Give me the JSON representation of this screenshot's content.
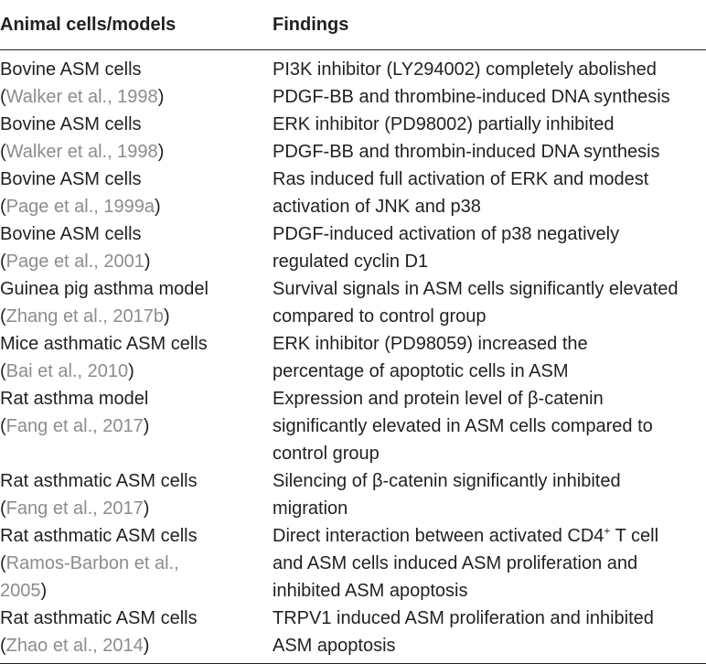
{
  "header": {
    "col1": "Animal cells/models",
    "col2": "Findings"
  },
  "rows": [
    {
      "model": "Bovine ASM cells",
      "cite": "Walker et al., 1998",
      "findings": [
        "PI3K inhibitor (LY294002) completely abolished",
        "PDGF-BB and thrombine-induced DNA synthesis"
      ]
    },
    {
      "model": "Bovine ASM cells",
      "cite": "Walker et al., 1998",
      "findings": [
        "ERK inhibitor (PD98002) partially inhibited",
        "PDGF-BB and thrombin-induced DNA synthesis"
      ]
    },
    {
      "model": "Bovine ASM cells",
      "cite": "Page et al., 1999a",
      "findings": [
        "Ras induced full activation of ERK and modest",
        "activation of JNK and p38"
      ]
    },
    {
      "model": "Bovine ASM cells",
      "cite": "Page et al., 2001",
      "findings": [
        "PDGF-induced activation of p38 negatively",
        "regulated cyclin D1"
      ]
    },
    {
      "model": "Guinea pig asthma model",
      "cite": "Zhang et al., 2017b",
      "findings": [
        "Survival signals in ASM cells significantly elevated",
        "compared to control group"
      ]
    },
    {
      "model": "Mice asthmatic ASM cells",
      "cite": "Bai et al., 2010",
      "findings": [
        "ERK inhibitor (PD98059) increased the",
        "percentage of apoptotic cells in ASM"
      ]
    },
    {
      "model": "Rat asthma model",
      "cite": "Fang et al., 2017",
      "findings": [
        "Expression and protein level of β-catenin",
        "significantly elevated in ASM cells compared to",
        "control group"
      ]
    },
    {
      "model": "Rat asthmatic ASM cells",
      "cite": "Fang et al., 2017",
      "findings": [
        "Silencing of β-catenin significantly inhibited",
        "migration"
      ]
    },
    {
      "model": "Rat asthmatic ASM cells",
      "cite_lines": [
        "Ramos-Barbon et al.,",
        "2005"
      ],
      "findings_first_pre": "Direct interaction between activated CD4",
      "findings_first_sup": "+",
      "findings_first_post": " T cell",
      "findings": [
        "and ASM cells induced ASM proliferation and",
        "inhibited ASM apoptosis"
      ]
    },
    {
      "model": "Rat asthmatic ASM cells",
      "cite": "Zhao et al., 2014",
      "findings": [
        "TRPV1 induced ASM proliferation and inhibited",
        "ASM apoptosis"
      ]
    }
  ]
}
